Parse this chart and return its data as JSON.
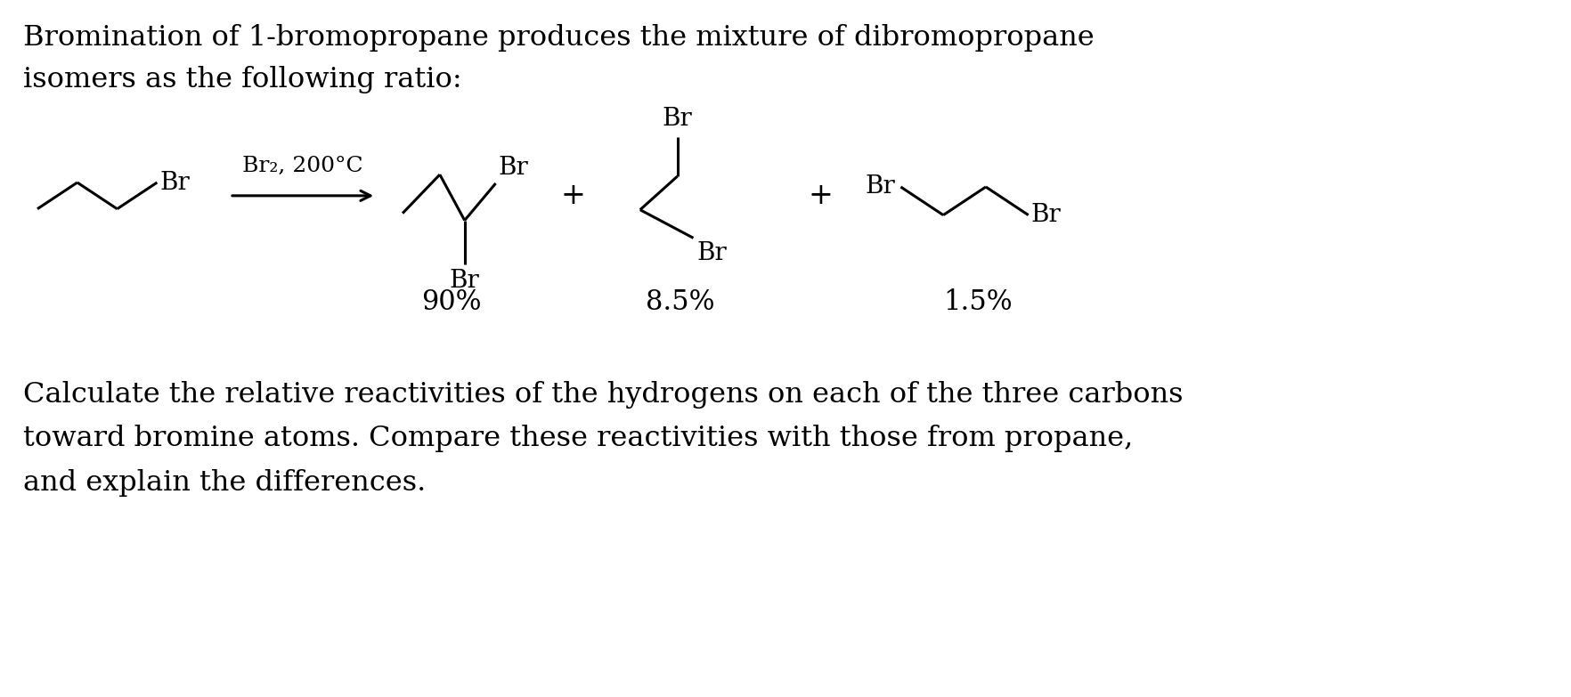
{
  "bg_color": "#ffffff",
  "text_color": "#000000",
  "title_line1": "Bromination of 1-bromopropane produces the mixture of dibromopropane",
  "title_line2": "isomers as the following ratio:",
  "question_line1": "Calculate the relative reactivities of the hydrogens on each of the three carbons",
  "question_line2": "toward bromine atoms. Compare these reactivities with those from propane,",
  "question_line3": "and explain the differences.",
  "condition_label": "Br₂, 200°C",
  "percent_1": "90%",
  "percent_2": "8.5%",
  "percent_3": "1.5%",
  "font_family": "DejaVu Serif",
  "title_fontsize": 23,
  "chem_fontsize": 20,
  "percent_fontsize": 22,
  "question_fontsize": 23
}
